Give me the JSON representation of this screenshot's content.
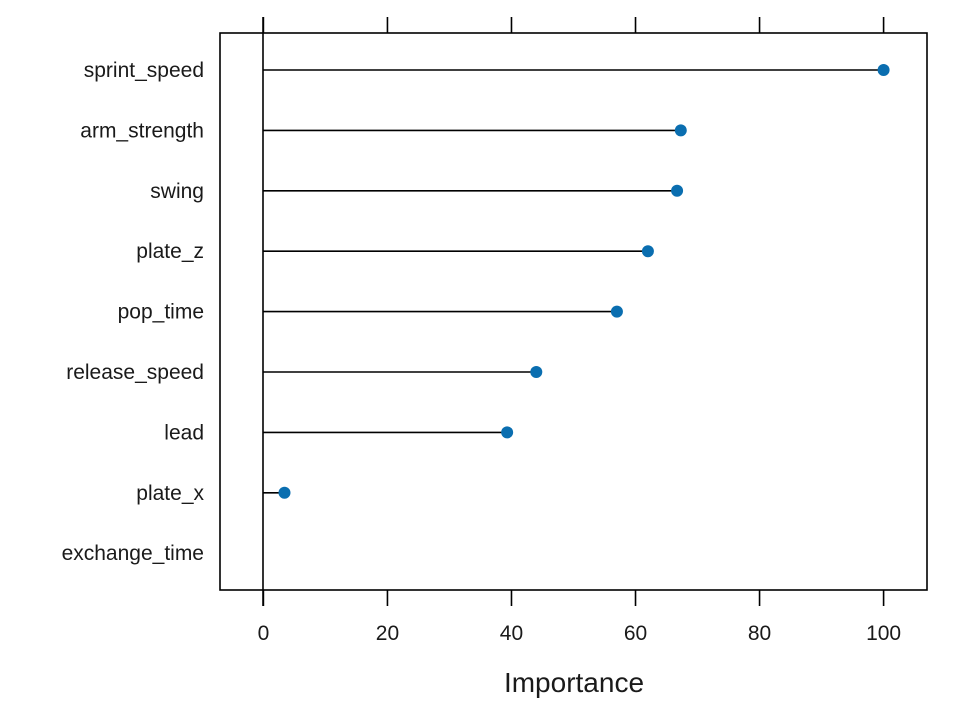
{
  "chart_data": {
    "type": "scatter",
    "style": "dotplot-lollipop",
    "title": "",
    "xlabel": "Importance",
    "ylabel": "",
    "xlim": [
      -7,
      107
    ],
    "xticks": [
      0,
      20,
      40,
      60,
      80,
      100
    ],
    "categories": [
      "sprint_speed",
      "arm_strength",
      "swing",
      "plate_z",
      "pop_time",
      "release_speed",
      "lead",
      "plate_x",
      "exchange_time"
    ],
    "values": [
      100,
      67.3,
      66.7,
      62.0,
      57.0,
      44.0,
      39.3,
      3.4,
      0
    ],
    "point_color": "#0a6eb0",
    "line_color": "#000000"
  }
}
